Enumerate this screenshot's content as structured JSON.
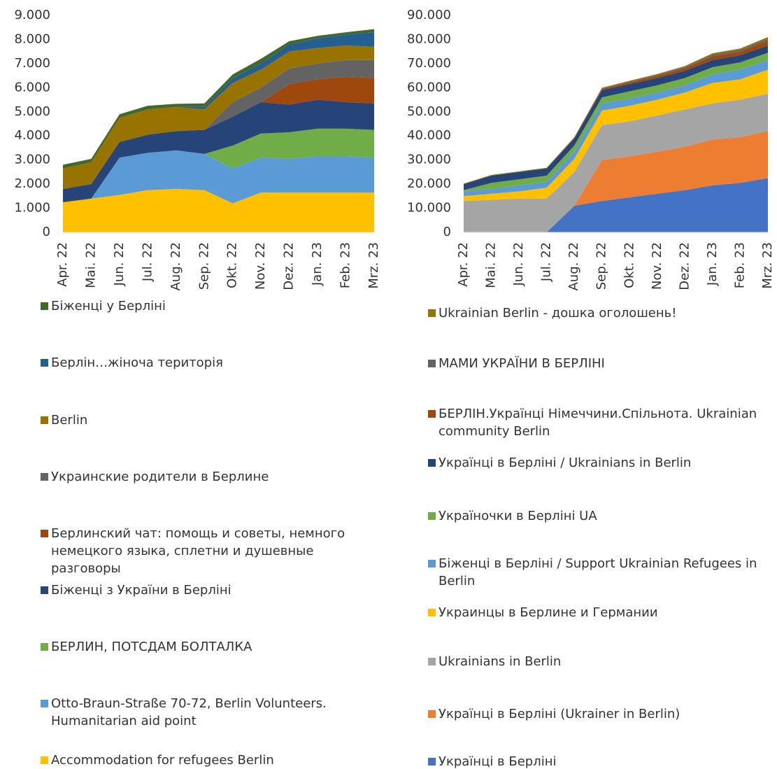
{
  "chart_data": [
    {
      "type": "stacked_area",
      "categories": [
        "Apr. 22",
        "Mai. 22",
        "Jun. 22",
        "Jul. 22",
        "Aug. 22",
        "Sep. 22",
        "Okt. 22",
        "Nov. 22",
        "Dez. 22",
        "Jan. 23",
        "Feb. 23",
        "Mrz. 23"
      ],
      "ylim": [
        0,
        9000
      ],
      "yticks": [
        0,
        {
          "value": 1000,
          "label": "1.000"
        },
        {
          "value": 2000,
          "label": "2.000"
        },
        {
          "value": 3000,
          "label": "3.000"
        },
        {
          "value": 4000,
          "label": "4.000"
        },
        {
          "value": 5000,
          "label": "5.000"
        },
        {
          "value": 6000,
          "label": "6.000"
        },
        {
          "value": 7000,
          "label": "7.000"
        },
        {
          "value": 8000,
          "label": "8.000"
        },
        {
          "value": 9000,
          "label": "9.000"
        }
      ],
      "grid": false,
      "series": [
        {
          "name": "Accommodation for refugees Berlin",
          "color": "#ffc000",
          "values": [
            1250,
            1400,
            1550,
            1750,
            1800,
            1750,
            1200,
            1650,
            1650,
            1650,
            1650,
            1650
          ]
        },
        {
          "name": "Otto-Braun-Straße 70-72, Berlin Volunteers. Humanitarian aid point",
          "color": "#5b9bd5",
          "values": [
            0,
            0,
            1550,
            1550,
            1600,
            1500,
            1450,
            1450,
            1400,
            1500,
            1500,
            1450
          ]
        },
        {
          "name": "БЕРЛИН, ПОТСДАМ БОЛТАЛКА",
          "color": "#70ad47",
          "values": [
            0,
            0,
            0,
            0,
            0,
            0,
            950,
            1000,
            1100,
            1150,
            1150,
            1150
          ]
        },
        {
          "name": "Біженці з України в Берліні",
          "color": "#264478",
          "values": [
            550,
            600,
            650,
            750,
            800,
            1000,
            1200,
            1300,
            1150,
            1200,
            1100,
            1100
          ]
        },
        {
          "name": "Берлинский чат: помощь и советы, немного немецкого языка, сплетни и душевные разговоры",
          "color": "#9e480e",
          "values": [
            0,
            0,
            0,
            0,
            0,
            0,
            0,
            0,
            850,
            850,
            1050,
            1050
          ]
        },
        {
          "name": "Украинские родители в Берлине",
          "color": "#636363",
          "values": [
            0,
            0,
            0,
            0,
            0,
            0,
            600,
            600,
            650,
            650,
            700,
            750
          ]
        },
        {
          "name": "Berlin",
          "color": "#997300",
          "values": [
            850,
            900,
            1000,
            1050,
            1000,
            850,
            800,
            750,
            700,
            650,
            600,
            550
          ]
        },
        {
          "name": "Берлін…жіноча територія",
          "color": "#255e91",
          "values": [
            0,
            0,
            0,
            0,
            0,
            100,
            200,
            250,
            300,
            400,
            450,
            600
          ]
        },
        {
          "name": "Біженці у Берліні",
          "color": "#43682b",
          "values": [
            150,
            150,
            150,
            150,
            130,
            150,
            150,
            200,
            130,
            100,
            100,
            130
          ]
        }
      ]
    },
    {
      "type": "stacked_area",
      "categories": [
        "Apr. 22",
        "Mai. 22",
        "Jun. 22",
        "Jul. 22",
        "Aug. 22",
        "Sep. 22",
        "Okt. 22",
        "Nov. 22",
        "Dez. 22",
        "Jan. 23",
        "Feb. 23",
        "Mrz. 23"
      ],
      "ylim": [
        0,
        90000
      ],
      "yticks": [
        0,
        {
          "value": 10000,
          "label": "10.000"
        },
        {
          "value": 20000,
          "label": "20.000"
        },
        {
          "value": 30000,
          "label": "30.000"
        },
        {
          "value": 40000,
          "label": "40.000"
        },
        {
          "value": 50000,
          "label": "50.000"
        },
        {
          "value": 60000,
          "label": "60.000"
        },
        {
          "value": 70000,
          "label": "70.000"
        },
        {
          "value": 80000,
          "label": "80.000"
        },
        {
          "value": 90000,
          "label": "90.000"
        }
      ],
      "grid": false,
      "series": [
        {
          "name": "Українці в Берліні",
          "color": "#4472c4",
          "values": [
            0,
            0,
            0,
            0,
            11000,
            13000,
            14500,
            16000,
            17500,
            19500,
            20500,
            22500
          ]
        },
        {
          "name": "Українці в Берліні (Ukrainer in Berlin)",
          "color": "#ed7d31",
          "values": [
            0,
            0,
            0,
            0,
            0,
            17000,
            17000,
            17500,
            18000,
            19000,
            19000,
            19500
          ]
        },
        {
          "name": "Ukrainians in Berlin",
          "color": "#a5a5a5",
          "values": [
            13000,
            13500,
            14000,
            14000,
            14000,
            14500,
            14500,
            15000,
            15500,
            15000,
            15500,
            15500
          ]
        },
        {
          "name": "Украинцы в Берлине и Германии",
          "color": "#ffc000",
          "values": [
            2000,
            2500,
            3000,
            4500,
            5500,
            6000,
            6500,
            6500,
            7000,
            8500,
            8500,
            10000
          ]
        },
        {
          "name": "Біженці в Берліні / Support Ukrainian Refugees in Berlin",
          "color": "#5b9bd5",
          "values": [
            2000,
            2000,
            2500,
            2500,
            3000,
            3000,
            3000,
            3000,
            3000,
            3500,
            4000,
            4000
          ]
        },
        {
          "name": "Україночки в Берліні UA",
          "color": "#70ad47",
          "values": [
            500,
            2500,
            2500,
            2500,
            2500,
            2500,
            3000,
            3000,
            3000,
            3000,
            3000,
            3000
          ]
        },
        {
          "name": "Українці в Берліні / Ukrainians in Berlin",
          "color": "#264478",
          "values": [
            2500,
            3000,
            3000,
            3000,
            3000,
            3000,
            3000,
            3000,
            3000,
            3000,
            3000,
            3000
          ]
        },
        {
          "name": "БЕРЛІН.Українці Німеччини.Спільнота. Ukrainian community Berlin",
          "color": "#9e480e",
          "values": [
            0,
            0,
            0,
            0,
            200,
            500,
            700,
            900,
            1000,
            1500,
            1500,
            2000
          ]
        },
        {
          "name": "МАМИ УКРАЇНИ В БЕРЛІНІ",
          "color": "#636363",
          "values": [
            0,
            0,
            0,
            0,
            0,
            200,
            300,
            400,
            500,
            700,
            700,
            800
          ]
        },
        {
          "name": "Ukrainian Berlin - дошка оголошень!",
          "color": "#997300",
          "values": [
            200,
            300,
            300,
            300,
            300,
            300,
            400,
            400,
            500,
            600,
            600,
            700
          ]
        }
      ]
    }
  ]
}
